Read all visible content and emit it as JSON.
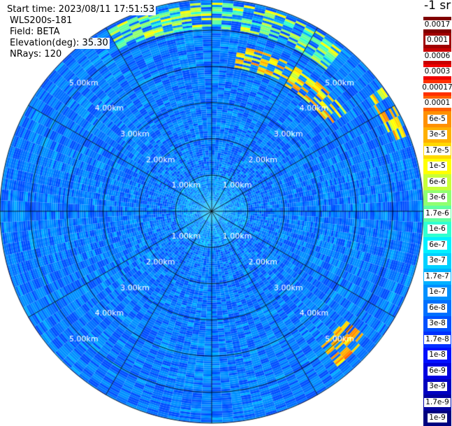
{
  "info": {
    "start_time": "Start time: 2023/08/11 17:51:53",
    "instrument": "WLS200s-181",
    "field": "Field: BETA",
    "elevation": "Elevation(deg): 35.30",
    "nrays": "NRays: 120"
  },
  "colorbar": {
    "unit_label": "-1 sr",
    "labels": [
      "0.0017",
      "0.001",
      "0.0006",
      "0.0003",
      "0.00017",
      "0.0001",
      "6e-5",
      "3e-5",
      "1.7e-5",
      "1e-5",
      "6e-6",
      "3e-6",
      "1.7e-6",
      "1e-6",
      "6e-7",
      "3e-7",
      "1.7e-7",
      "1e-7",
      "6e-8",
      "3e-8",
      "1.7e-8",
      "1e-8",
      "6e-9",
      "3e-9",
      "1.7e-9",
      "1e-9"
    ],
    "colors": [
      "#800000",
      "#a00000",
      "#c80000",
      "#f00000",
      "#ff3000",
      "#ff6000",
      "#ff9000",
      "#ffb000",
      "#ffd800",
      "#ffff00",
      "#c8ff38",
      "#90ff70",
      "#60ffa0",
      "#30ffd0",
      "#00f0ff",
      "#00d0ff",
      "#00b0ff",
      "#0090ff",
      "#0070ff",
      "#0050ff",
      "#0030ff",
      "#0010ff",
      "#0000e0",
      "#0000c0",
      "#0000a0",
      "#000080"
    ]
  },
  "chart_data": {
    "type": "ppi_polar_heatmap",
    "field": "BETA",
    "elevation_deg": 35.3,
    "n_rays": 120,
    "range_rings_km": [
      1.0,
      2.0,
      3.0,
      4.0,
      5.0
    ],
    "range_labels": [
      "1.00km",
      "2.00km",
      "3.00km",
      "4.00km",
      "5.00km"
    ],
    "max_range_km": 5.85,
    "spoke_angles_deg": [
      0,
      30,
      60,
      90,
      120,
      150,
      180,
      210,
      240,
      270,
      300,
      330
    ],
    "background_levels": [
      {
        "range_km": [
          0.0,
          0.3
        ],
        "beta": "1.7e-7"
      },
      {
        "range_km": [
          0.3,
          1.0
        ],
        "beta": "1e-7"
      },
      {
        "range_km": [
          1.0,
          2.5
        ],
        "beta": "6e-8"
      },
      {
        "range_km": [
          2.5,
          5.85
        ],
        "beta": "6e-8"
      }
    ],
    "features": [
      {
        "name": "north-arc",
        "azimuth_deg": [
          330,
          40
        ],
        "range_km": [
          5.0,
          5.7
        ],
        "beta": "3e-6"
      },
      {
        "name": "northeast-band",
        "azimuth_deg": [
          10,
          55
        ],
        "range_km": [
          4.0,
          4.6
        ],
        "beta": "1.7e-5"
      },
      {
        "name": "east-cells",
        "azimuth_deg": [
          55,
          70
        ],
        "range_km": [
          5.3,
          5.8
        ],
        "beta": "1.7e-5"
      },
      {
        "name": "southeast-patch",
        "azimuth_deg": [
          128,
          140
        ],
        "range_km": [
          4.7,
          5.5
        ],
        "beta": "3e-5"
      }
    ]
  }
}
